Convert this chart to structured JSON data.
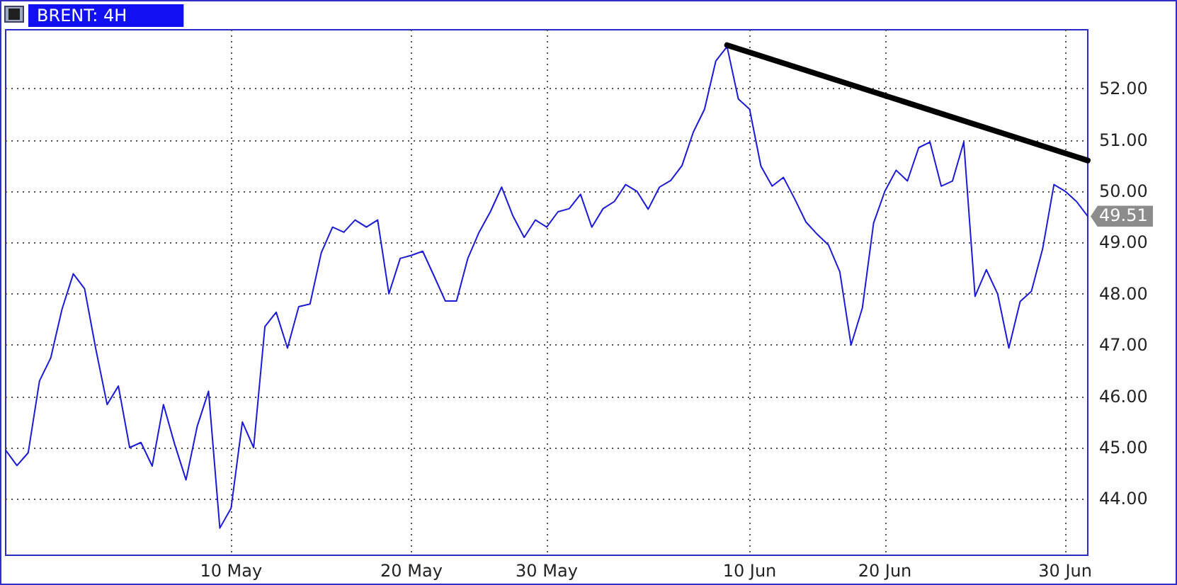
{
  "chart_data": {
    "type": "line",
    "title": "BRENT: 4H",
    "categories": [
      null,
      null,
      null,
      null,
      null,
      null,
      null,
      null,
      null,
      null,
      null,
      null,
      null,
      null,
      null,
      null,
      null,
      null,
      null,
      null,
      "10 May",
      null,
      null,
      null,
      null,
      null,
      null,
      null,
      null,
      null,
      null,
      null,
      null,
      null,
      null,
      null,
      "20 May",
      null,
      null,
      null,
      null,
      null,
      null,
      null,
      null,
      null,
      null,
      null,
      "30 May",
      null,
      null,
      null,
      null,
      null,
      null,
      null,
      null,
      null,
      null,
      null,
      null,
      null,
      null,
      null,
      null,
      null,
      "10 Jun",
      null,
      null,
      null,
      null,
      null,
      null,
      null,
      null,
      null,
      null,
      null,
      "20 Jun",
      null,
      null,
      null,
      null,
      null,
      null,
      null,
      null,
      null,
      null,
      null,
      null,
      null,
      null,
      null,
      "30 Jun",
      null,
      null
    ],
    "series": [
      {
        "color": "#1a1ad8",
        "values": [
          44.95,
          44.65,
          44.9,
          46.3,
          46.75,
          47.7,
          48.39,
          48.1,
          46.92,
          45.84,
          46.2,
          45.0,
          45.1,
          44.64,
          45.84,
          45.06,
          44.37,
          45.42,
          46.1,
          43.43,
          43.82,
          45.5,
          45.0,
          47.36,
          47.64,
          46.94,
          47.75,
          47.8,
          48.8,
          49.3,
          49.2,
          49.44,
          49.3,
          49.44,
          48.0,
          48.69,
          48.75,
          48.83,
          48.35,
          47.86,
          47.86,
          48.69,
          49.2,
          49.6,
          50.08,
          49.52,
          49.1,
          49.44,
          49.3,
          49.6,
          49.66,
          49.94,
          49.3,
          49.66,
          49.8,
          50.13,
          50.0,
          49.65,
          50.08,
          50.21,
          50.5,
          51.15,
          51.6,
          52.54,
          52.82,
          51.8,
          51.6,
          50.49,
          50.1,
          50.27,
          49.85,
          49.4,
          49.16,
          48.95,
          48.43,
          47.0,
          47.72,
          49.38,
          50.0,
          50.41,
          50.2,
          50.85,
          50.96,
          50.1,
          50.2,
          50.96,
          47.95,
          48.47,
          48.0,
          46.94,
          47.85,
          48.05,
          48.88,
          50.13,
          50.0,
          49.8,
          49.51
        ]
      },
      {
        "type": "line",
        "color": "#000000",
        "values": [
          null,
          null,
          null,
          null,
          null,
          null,
          null,
          null,
          null,
          null,
          null,
          null,
          null,
          null,
          null,
          null,
          null,
          null,
          null,
          null,
          null,
          null,
          null,
          null,
          null,
          null,
          null,
          null,
          null,
          null,
          null,
          null,
          null,
          null,
          null,
          null,
          null,
          null,
          null,
          null,
          null,
          null,
          null,
          null,
          null,
          null,
          null,
          null,
          null,
          null,
          null,
          null,
          null,
          null,
          null,
          null,
          null,
          null,
          null,
          null,
          null,
          null,
          null,
          null,
          52.85,
          null,
          null,
          null,
          null,
          null,
          null,
          null,
          null,
          null,
          null,
          null,
          null,
          null,
          null,
          null,
          null,
          null,
          null,
          null,
          null,
          null,
          null,
          null,
          null,
          null,
          null,
          null,
          null,
          null,
          null,
          null,
          50.6
        ]
      }
    ],
    "ylim": [
      42.9,
      53.15
    ],
    "yticks": [
      {
        "value": 44,
        "label": "44.00"
      },
      {
        "value": 45,
        "label": "45.00"
      },
      {
        "value": 46,
        "label": "46.00"
      },
      {
        "value": 47,
        "label": "47.00"
      },
      {
        "value": 48,
        "label": "48.00"
      },
      {
        "value": 49,
        "label": "49.00"
      },
      {
        "value": 50,
        "label": "50.00"
      },
      {
        "value": 51,
        "label": "51.00"
      },
      {
        "value": 52,
        "label": "52.00"
      }
    ],
    "annotations": [
      "49.51"
    ],
    "grid": true,
    "marker": "none",
    "line_style": "solid"
  }
}
